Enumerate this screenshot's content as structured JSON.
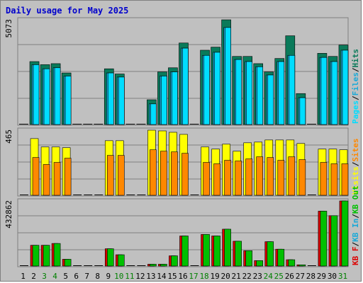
{
  "title": "Daily usage for May 2025",
  "colors": {
    "hits": "#0a7a5a",
    "files": "#18a9d8",
    "pages": "#00ddff",
    "visits": "#ffff00",
    "sites": "#ff8800",
    "kb_in": "#00c000",
    "kb_out": "#dd0000",
    "day_weekday": "#000000",
    "day_weekend": "#008000"
  },
  "chart_data": [
    {
      "type": "bar",
      "title": "Daily usage for May 2025",
      "panel": "top",
      "ymax_label": "5073",
      "ylim": [
        0,
        5073
      ],
      "right_legend": [
        {
          "text": "Pages",
          "color": "#00ddff"
        },
        {
          "text": "/",
          "color": "#000000"
        },
        {
          "text": "Files",
          "color": "#18a9d8"
        },
        {
          "text": "/",
          "color": "#000000"
        },
        {
          "text": "Hits",
          "color": "#0a7a5a"
        }
      ],
      "categories": [
        "1",
        "2",
        "3",
        "4",
        "5",
        "6",
        "7",
        "8",
        "9",
        "10",
        "11",
        "12",
        "13",
        "14",
        "15",
        "16",
        "17",
        "18",
        "19",
        "20",
        "21",
        "22",
        "23",
        "24",
        "25",
        "26",
        "27",
        "28",
        "29",
        "30",
        "31"
      ],
      "series": [
        {
          "name": "Hits",
          "values": [
            0,
            3050,
            2900,
            2950,
            2500,
            0,
            0,
            0,
            2700,
            2450,
            0,
            0,
            1200,
            2550,
            2750,
            3950,
            0,
            3600,
            3750,
            5073,
            3300,
            3300,
            2950,
            2550,
            3200,
            4300,
            1500,
            0,
            3450,
            3300,
            3850
          ]
        },
        {
          "name": "Files",
          "values": [
            0,
            2900,
            2700,
            2750,
            2350,
            0,
            0,
            0,
            2500,
            2300,
            0,
            0,
            1000,
            2350,
            2550,
            3700,
            0,
            3350,
            3500,
            4700,
            3150,
            3050,
            2800,
            2400,
            3050,
            3350,
            1300,
            0,
            3250,
            3050,
            3600
          ]
        },
        {
          "name": "Pages",
          "values": [
            0,
            2900,
            2700,
            2750,
            2350,
            0,
            0,
            0,
            2500,
            2300,
            0,
            0,
            1000,
            2350,
            2550,
            3700,
            0,
            3350,
            3500,
            4700,
            3150,
            3050,
            2800,
            2400,
            3050,
            3350,
            1300,
            0,
            3250,
            3050,
            3600
          ]
        }
      ]
    },
    {
      "type": "bar",
      "panel": "middle",
      "ymax_label": "465",
      "ylim": [
        0,
        465
      ],
      "right_legend": [
        {
          "text": "Visits",
          "color": "#ffff00"
        },
        {
          "text": "/",
          "color": "#000000"
        },
        {
          "text": "Sites",
          "color": "#ff8800"
        }
      ],
      "categories": [
        "1",
        "2",
        "3",
        "4",
        "5",
        "6",
        "7",
        "8",
        "9",
        "10",
        "11",
        "12",
        "13",
        "14",
        "15",
        "16",
        "17",
        "18",
        "19",
        "20",
        "21",
        "22",
        "23",
        "24",
        "25",
        "26",
        "27",
        "28",
        "29",
        "30",
        "31"
      ],
      "series": [
        {
          "name": "Visits",
          "values": [
            0,
            405,
            345,
            345,
            340,
            0,
            0,
            0,
            390,
            390,
            0,
            0,
            465,
            460,
            450,
            435,
            0,
            345,
            330,
            365,
            315,
            375,
            380,
            395,
            395,
            395,
            370,
            0,
            330,
            330,
            325
          ]
        },
        {
          "name": "Sites",
          "values": [
            0,
            270,
            220,
            235,
            265,
            0,
            0,
            0,
            285,
            285,
            0,
            0,
            325,
            315,
            310,
            300,
            0,
            235,
            225,
            250,
            245,
            260,
            275,
            270,
            250,
            275,
            255,
            0,
            235,
            225,
            225
          ]
        }
      ]
    },
    {
      "type": "bar",
      "panel": "bottom",
      "ymax_label": "432862",
      "ylim": [
        0,
        432862
      ],
      "right_legend": [
        {
          "text": "KB F",
          "color": "#dd0000"
        },
        {
          "text": "/",
          "color": "#000000"
        },
        {
          "text": "KB In",
          "color": "#18a9d8"
        },
        {
          "text": "/",
          "color": "#000000"
        },
        {
          "text": "KB Out",
          "color": "#00c000"
        }
      ],
      "categories": [
        "1",
        "2",
        "3",
        "4",
        "5",
        "6",
        "7",
        "8",
        "9",
        "10",
        "11",
        "12",
        "13",
        "14",
        "15",
        "16",
        "17",
        "18",
        "19",
        "20",
        "21",
        "22",
        "23",
        "24",
        "25",
        "26",
        "27",
        "28",
        "29",
        "30",
        "31"
      ],
      "series": [
        {
          "name": "KB Out",
          "values": [
            0,
            138000,
            138000,
            150000,
            45000,
            0,
            0,
            0,
            115000,
            75000,
            0,
            0,
            12000,
            12000,
            68000,
            200000,
            0,
            210000,
            200000,
            245000,
            165000,
            102000,
            36000,
            162000,
            112000,
            42000,
            8000,
            0,
            365000,
            335000,
            432862
          ]
        },
        {
          "name": "KB F",
          "values": [
            0,
            138000,
            138000,
            150000,
            45000,
            0,
            0,
            0,
            115000,
            75000,
            0,
            0,
            12000,
            12000,
            68000,
            200000,
            0,
            210000,
            200000,
            245000,
            165000,
            102000,
            36000,
            162000,
            112000,
            42000,
            8000,
            0,
            365000,
            335000,
            432862
          ]
        }
      ]
    }
  ],
  "weekends": [
    3,
    4,
    10,
    11,
    17,
    18,
    24,
    25,
    31
  ]
}
